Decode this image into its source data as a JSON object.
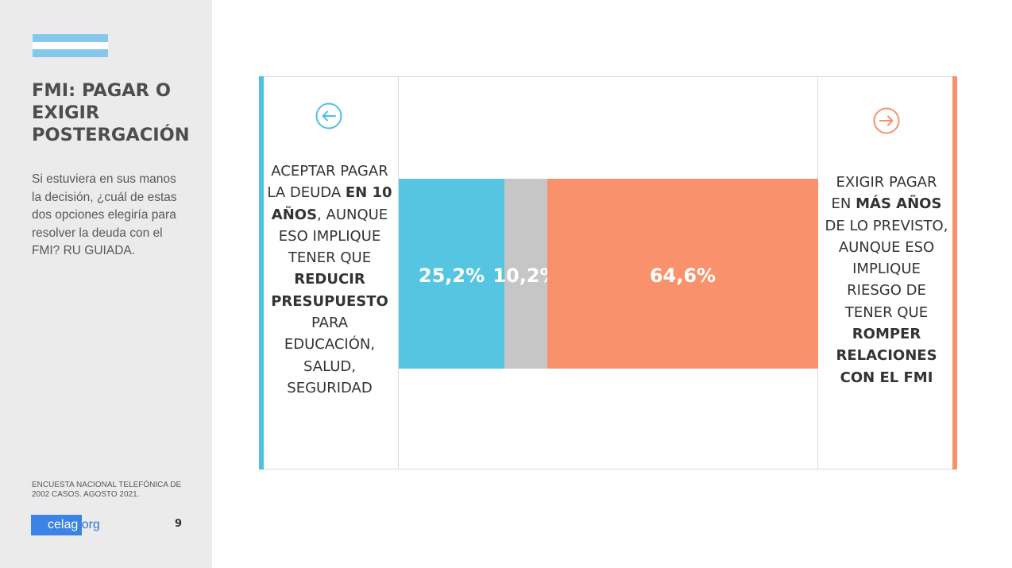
{
  "sidebar": {
    "title": "FMI: PAGAR O EXIGIR POSTERGACIÓN",
    "question": "Si estuviera en sus manos la decisión, ¿cuál de estas dos opciones elegiría para resolver la deuda con el FMI? RU GUIADA.",
    "source_line1": "ENCUESTA NACIONAL TELEFÓNICA DE",
    "source_line2": "2002 CASOS. AGOSTO 2021.",
    "logo_main": "celag",
    "logo_suffix": ".org",
    "page_number": "9"
  },
  "left_option": {
    "icon": "arrow-left-circle-icon",
    "color": "#4fc0e0",
    "parts": [
      "ACEPTAR PAGAR LA DEUDA ",
      "EN 10 AÑOS",
      ", AUNQUE ESO IMPLIQUE TENER QUE ",
      "REDUCIR PRESUPUESTO",
      " PARA EDUCACIÓN, SALUD, SEGURIDAD"
    ]
  },
  "right_option": {
    "icon": "arrow-right-circle-icon",
    "color": "#f7916b",
    "parts": [
      "EXIGIR PAGAR EN ",
      "MÁS AÑOS",
      " DE LO PREVISTO, AUNQUE ESO IMPLIQUE RIESGO DE TENER QUE ",
      "ROMPER RELACIONES CON EL FMI"
    ]
  },
  "chart_data": {
    "type": "bar",
    "orientation": "horizontal-stacked-100",
    "title": "",
    "xlabel": "",
    "ylabel": "",
    "xlim": [
      0,
      100
    ],
    "segments": [
      {
        "value": 25.2,
        "label": "25,2%",
        "color": "#55c5e2"
      },
      {
        "value": 10.2,
        "label": "10,2%",
        "color": "#c6c6c6"
      },
      {
        "value": 64.6,
        "label": "64,6%",
        "color": "#f8916c"
      }
    ]
  }
}
